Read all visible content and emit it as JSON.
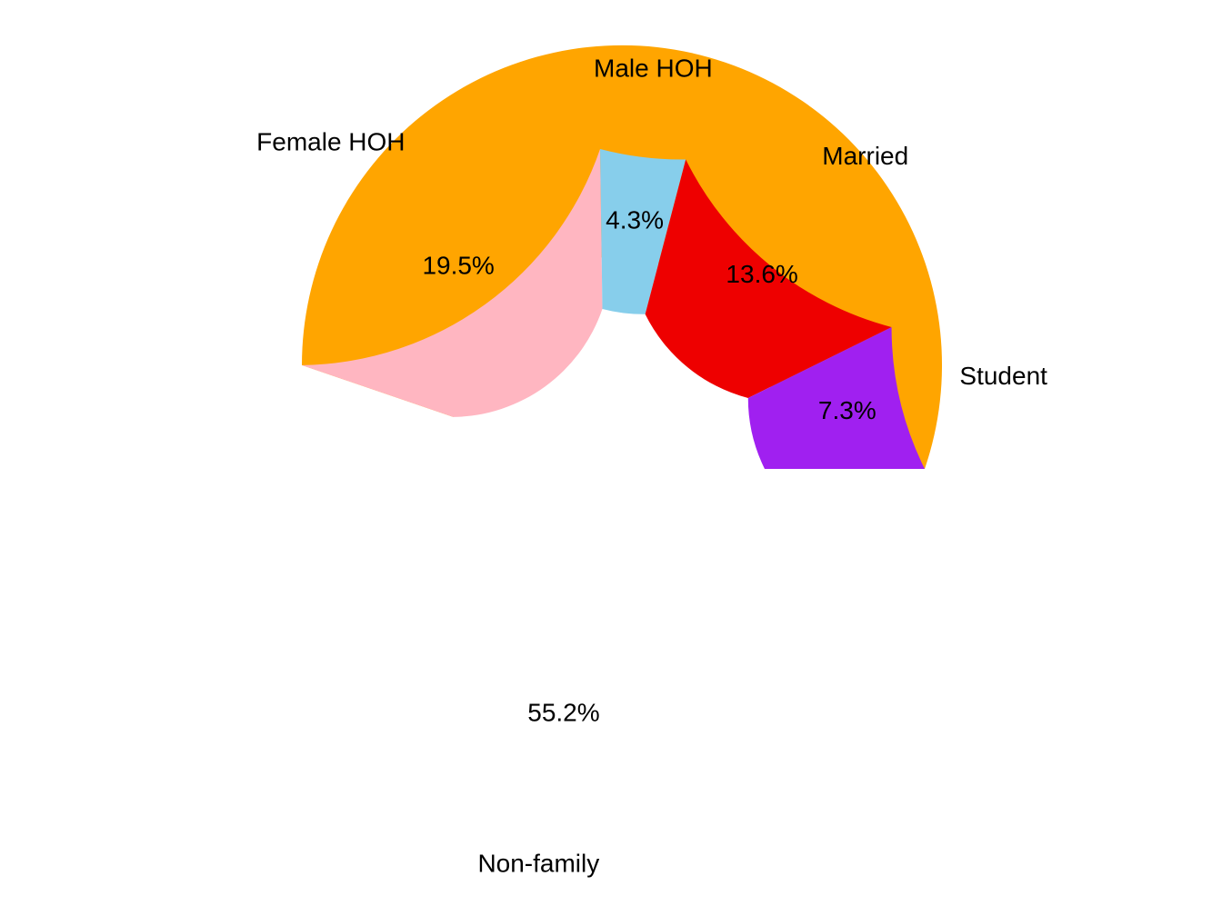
{
  "chart_data": {
    "type": "pie",
    "donut": true,
    "start_angle_deg": 0,
    "direction": "counterclockwise",
    "slices": [
      {
        "label": "Non-family",
        "value": 55.2,
        "value_label": "55.2%",
        "color": "#FFA500"
      },
      {
        "label": "Female HOH",
        "value": 19.5,
        "value_label": "19.5%",
        "color": "#FFB6C1"
      },
      {
        "label": "Male HOH",
        "value": 4.3,
        "value_label": "4.3%",
        "color": "#87CEEB"
      },
      {
        "label": "Married",
        "value": 13.6,
        "value_label": "13.6%",
        "color": "#EE0000"
      },
      {
        "label": "Student",
        "value": 7.3,
        "value_label": "7.3%",
        "color": "#A020F0"
      }
    ]
  }
}
